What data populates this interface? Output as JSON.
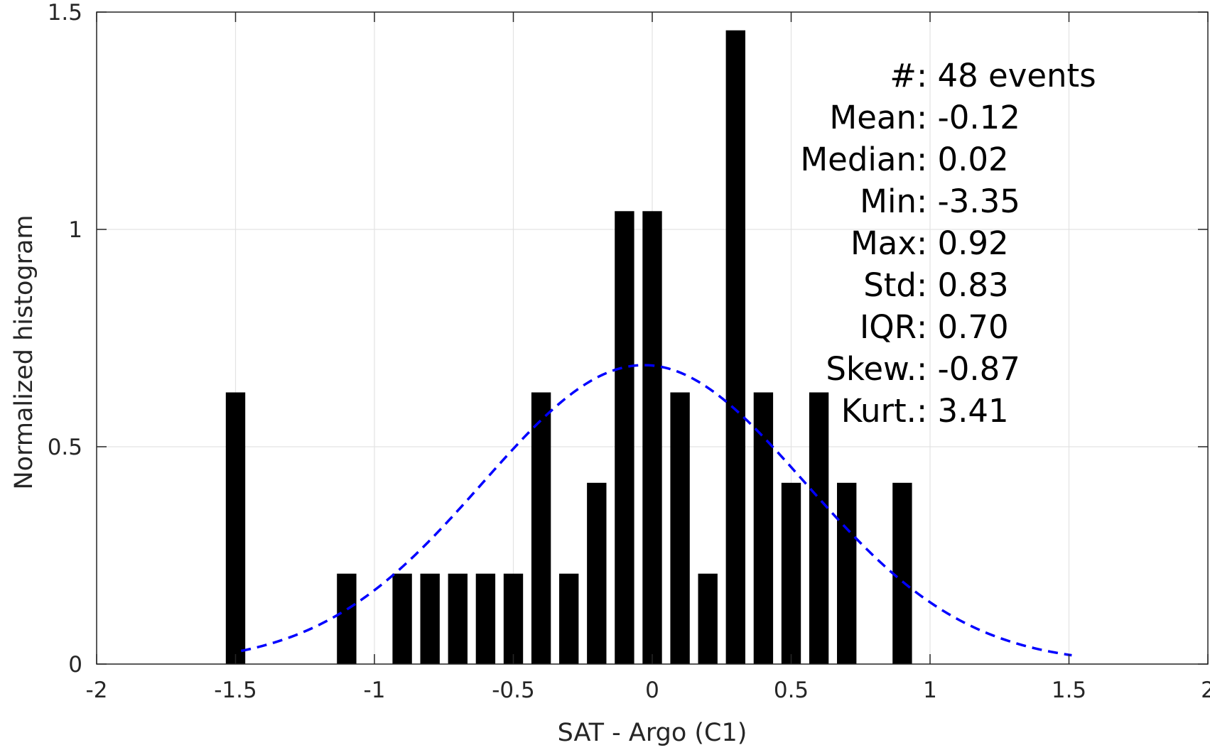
{
  "chart_data": {
    "type": "bar",
    "xlabel": "SAT - Argo (C1)",
    "ylabel": "Normalized histogram",
    "xlim": [
      -2,
      2
    ],
    "ylim": [
      0,
      1.5
    ],
    "xticks": [
      -2,
      -1.5,
      -1,
      -0.5,
      0,
      0.5,
      1,
      1.5,
      2
    ],
    "xtick_labels": [
      "-2",
      "-1.5",
      "-1",
      "-0.5",
      "0",
      "0.5",
      "1",
      "1.5",
      "2"
    ],
    "yticks": [
      0,
      0.5,
      1,
      1.5
    ],
    "ytick_labels": [
      "0",
      "0.5",
      "1",
      "1.5"
    ],
    "grid": true,
    "bar_width": 0.07,
    "bars": [
      {
        "x": -1.5,
        "y": 0.625
      },
      {
        "x": -1.1,
        "y": 0.208
      },
      {
        "x": -0.9,
        "y": 0.208
      },
      {
        "x": -0.8,
        "y": 0.208
      },
      {
        "x": -0.7,
        "y": 0.208
      },
      {
        "x": -0.6,
        "y": 0.208
      },
      {
        "x": -0.5,
        "y": 0.208
      },
      {
        "x": -0.4,
        "y": 0.625
      },
      {
        "x": -0.3,
        "y": 0.208
      },
      {
        "x": -0.2,
        "y": 0.417
      },
      {
        "x": -0.1,
        "y": 1.042
      },
      {
        "x": 0.0,
        "y": 1.042
      },
      {
        "x": 0.1,
        "y": 0.625
      },
      {
        "x": 0.2,
        "y": 0.208
      },
      {
        "x": 0.3,
        "y": 1.458
      },
      {
        "x": 0.4,
        "y": 0.625
      },
      {
        "x": 0.5,
        "y": 0.417
      },
      {
        "x": 0.6,
        "y": 0.625
      },
      {
        "x": 0.7,
        "y": 0.417
      },
      {
        "x": 0.9,
        "y": 0.417
      }
    ],
    "fit_curve": {
      "style": "dashed",
      "color": "#0000ff",
      "mean": -0.03,
      "std": 0.58,
      "x_range": [
        -1.48,
        1.51
      ]
    },
    "bar_color": "#000000",
    "annotation_lines": [
      {
        "label": "#  ",
        "value": ": 48 events"
      },
      {
        "label": "Mean ",
        "value": ": -0.12"
      },
      {
        "label": "Median ",
        "value": ": 0.02"
      },
      {
        "label": "Min ",
        "value": ": -3.35"
      },
      {
        "label": "Max ",
        "value": ": 0.92"
      },
      {
        "label": "Std ",
        "value": ": 0.83"
      },
      {
        "label": "IQR ",
        "value": ": 0.70"
      },
      {
        "label": "Skew. ",
        "value": ": -0.87"
      },
      {
        "label": "Kurt. ",
        "value": ": 3.41"
      }
    ]
  }
}
